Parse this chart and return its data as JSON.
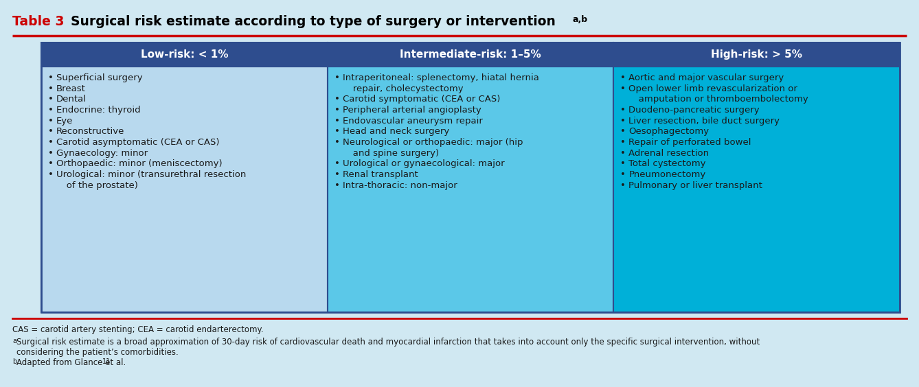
{
  "title_table": "Table 3",
  "title_main": "  Surgical risk estimate according to type of surgery or intervention",
  "title_superscript": "a,b",
  "bg_color": "#d0e8f2",
  "header_color": "#2e4d8e",
  "cell_bg_low": "#b8d9ee",
  "cell_bg_mid": "#5bc8e8",
  "cell_bg_high": "#00b0d8",
  "header_text_color": "#ffffff",
  "cell_border_color": "#2e4d8e",
  "col_headers": [
    "Low-risk: < 1%",
    "Intermediate-risk: 1–5%",
    "High-risk: > 5%"
  ],
  "col_low": [
    "Superficial surgery",
    "Breast",
    "Dental",
    "Endocrine: thyroid",
    "Eye",
    "Reconstructive",
    "Carotid asymptomatic (CEA or CAS)",
    "Gynaecology: minor",
    "Orthopaedic: minor (meniscectomy)",
    "Urological: minor (transurethral resection\n   of the prostate)"
  ],
  "col_mid": [
    "Intraperitoneal: splenectomy, hiatal hernia\n   repair, cholecystectomy",
    "Carotid symptomatic (CEA or CAS)",
    "Peripheral arterial angioplasty",
    "Endovascular aneurysm repair",
    "Head and neck surgery",
    "Neurological or orthopaedic: major (hip\n   and spine surgery)",
    "Urological or gynaecological: major",
    "Renal transplant",
    "Intra-thoracic: non-major"
  ],
  "col_high": [
    "Aortic and major vascular surgery",
    "Open lower limb revascularization or\n   amputation or thromboembolectomy",
    "Duodeno-pancreatic surgery",
    "Liver resection, bile duct surgery",
    "Oesophagectomy",
    "Repair of perforated bowel",
    "Adrenal resection",
    "Total cystectomy",
    "Pneumonectomy",
    "Pulmonary or liver transplant"
  ],
  "footnote1": "CAS = carotid artery stenting; CEA = carotid endarterectomy.",
  "footnote2a": "a",
  "footnote2b": "Surgical risk estimate is a broad approximation of 30-day risk of cardiovascular death and myocardial infarction that takes into account only the specific surgical intervention, without",
  "footnote2c": "considering the patient’s comorbidities.",
  "footnote3a": "b",
  "footnote3b": "Adapted from Glance et al.",
  "footnote3c": "11",
  "red_line_color": "#cc0000",
  "title_red_color": "#cc0000",
  "title_bold_color": "#000000",
  "text_color_dark": "#1a1a1a",
  "text_color_light": "#ffffff"
}
